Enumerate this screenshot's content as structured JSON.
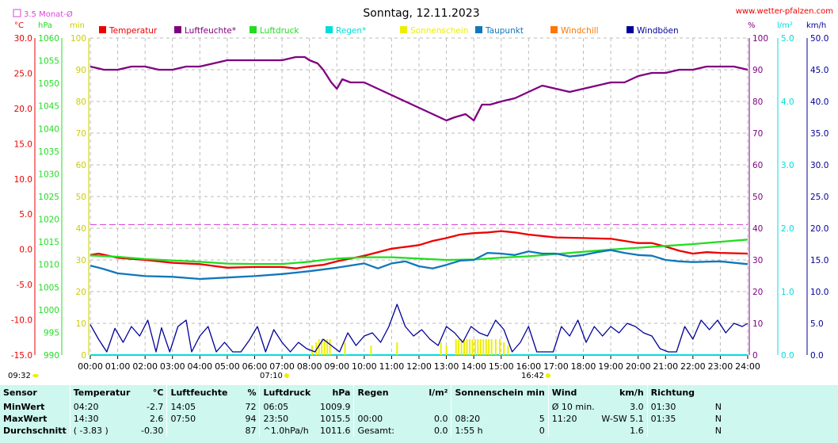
{
  "header": {
    "title": "Sonntag, 12.11.2023",
    "website": "www.wetter-pfalzen.com",
    "avg_marker_label": "3.5 Monat-Ø",
    "units_left": [
      "°C",
      "hPa",
      "min"
    ],
    "units_right": [
      "%",
      "l/m²",
      "km/h"
    ],
    "sunrise": "07:10",
    "sunset": "16:42",
    "time_now": "09:32"
  },
  "colors": {
    "temperature": "#ee0000",
    "humidity": "#800080",
    "pressure": "#22dd22",
    "rain": "#00dddd",
    "sunshine": "#eeee00",
    "dewpoint": "#1177bb",
    "windchill": "#ff7700",
    "gusts": "#000099",
    "avg_line": "#dd44dd",
    "stats_bg": "#cdf7ef"
  },
  "chart_data": {
    "type": "line",
    "title": "Sonntag, 12.11.2023",
    "x_ticks": [
      "00:00",
      "01:00",
      "02:00",
      "03:00",
      "04:00",
      "05:00",
      "06:00",
      "07:00",
      "08:00",
      "09:00",
      "10:00",
      "11:00",
      "12:00",
      "13:00",
      "14:00",
      "15:00",
      "16:00",
      "17:00",
      "18:00",
      "19:00",
      "20:00",
      "21:00",
      "22:00",
      "23:00",
      "24:00"
    ],
    "xlim": [
      0,
      24
    ],
    "grid": true,
    "legend_position": "top",
    "axes": {
      "temperature": {
        "unit": "°C",
        "ylim": [
          -15,
          30
        ],
        "ticks": [
          "-15.0",
          "-10.0",
          "-5.0",
          "0.0",
          "5.0",
          "10.0",
          "15.0",
          "20.0",
          "25.0",
          "30.0"
        ]
      },
      "pressure": {
        "unit": "hPa",
        "ylim": [
          990,
          1060
        ],
        "ticks": [
          "990",
          "995",
          "1000",
          "1005",
          "1010",
          "1015",
          "1020",
          "1025",
          "1030",
          "1035",
          "1040",
          "1045",
          "1050",
          "1055",
          "1060"
        ]
      },
      "minutes": {
        "unit": "min",
        "ylim": [
          0,
          100
        ],
        "ticks": [
          "0",
          "10",
          "20",
          "30",
          "40",
          "50",
          "60",
          "70",
          "80",
          "90",
          "100"
        ]
      },
      "humidity": {
        "unit": "%",
        "ylim": [
          0,
          100
        ],
        "ticks": [
          "0",
          "10",
          "20",
          "30",
          "40",
          "50",
          "60",
          "70",
          "80",
          "90",
          "100"
        ]
      },
      "rain": {
        "unit": "l/m²",
        "ylim": [
          0,
          5
        ],
        "ticks": [
          "0.0",
          "1.0",
          "2.0",
          "3.0",
          "4.0",
          "5.0"
        ]
      },
      "wind": {
        "unit": "km/h",
        "ylim": [
          0,
          50
        ],
        "ticks": [
          "0.0",
          "5.0",
          "10.0",
          "15.0",
          "20.0",
          "25.0",
          "30.0",
          "35.0",
          "40.0",
          "45.0",
          "50.0"
        ]
      }
    },
    "monthly_average_temperature": 3.5,
    "series": [
      {
        "name": "Temperatur",
        "axis": "temperature",
        "x": [
          0,
          0.3,
          1,
          2,
          3,
          4,
          5,
          6,
          7,
          7.5,
          8,
          8.5,
          9,
          10,
          11,
          12,
          12.5,
          13,
          13.5,
          14,
          14.5,
          15,
          15.5,
          16,
          16.5,
          17,
          18,
          19,
          20,
          20.5,
          21,
          21.5,
          22,
          22.5,
          23,
          24
        ],
        "y": [
          -0.8,
          -0.6,
          -1.2,
          -1.5,
          -1.9,
          -2.1,
          -2.6,
          -2.5,
          -2.5,
          -2.7,
          -2.4,
          -2.2,
          -1.7,
          -0.9,
          0.1,
          0.6,
          1.2,
          1.6,
          2.1,
          2.3,
          2.4,
          2.6,
          2.4,
          2.1,
          1.9,
          1.7,
          1.6,
          1.5,
          0.9,
          0.9,
          0.4,
          -0.2,
          -0.6,
          -0.4,
          -0.5,
          -0.6
        ]
      },
      {
        "name": "Luftfeuchte*",
        "axis": "humidity",
        "x": [
          0,
          0.5,
          1,
          1.5,
          2,
          2.5,
          3,
          3.5,
          4,
          4.5,
          5,
          5.5,
          6,
          6.5,
          7,
          7.5,
          7.83,
          8,
          8.3,
          8.5,
          8.8,
          9,
          9.2,
          9.5,
          10,
          10.5,
          11,
          11.5,
          12,
          12.5,
          13,
          13.3,
          13.7,
          14,
          14.3,
          14.6,
          15,
          15.5,
          16,
          16.5,
          17,
          17.5,
          18,
          18.5,
          19,
          19.5,
          20,
          20.5,
          21,
          21.5,
          22,
          22.5,
          23,
          23.5,
          24
        ],
        "y": [
          91,
          90,
          90,
          91,
          91,
          90,
          90,
          91,
          91,
          92,
          93,
          93,
          93,
          93,
          93,
          94,
          94,
          93,
          92,
          90,
          86,
          84,
          87,
          86,
          86,
          84,
          82,
          80,
          78,
          76,
          74,
          75,
          76,
          74,
          79,
          79,
          80,
          81,
          83,
          85,
          84,
          83,
          84,
          85,
          86,
          86,
          88,
          89,
          89,
          90,
          90,
          91,
          91,
          91,
          90
        ]
      },
      {
        "name": "Luftdruck",
        "axis": "pressure",
        "x": [
          0,
          1,
          2,
          3,
          4,
          5,
          6,
          7,
          8,
          8.5,
          9,
          10,
          11,
          12,
          13,
          14,
          14.5,
          15,
          16,
          17,
          18,
          19,
          20,
          21,
          22,
          23,
          24
        ],
        "y": [
          1012.0,
          1011.7,
          1011.2,
          1010.9,
          1010.6,
          1010.2,
          1010.1,
          1010.1,
          1010.6,
          1011.0,
          1011.3,
          1011.6,
          1011.6,
          1011.3,
          1011.0,
          1011.1,
          1011.3,
          1011.5,
          1011.8,
          1012.3,
          1012.8,
          1013.3,
          1013.7,
          1014.1,
          1014.5,
          1015.0,
          1015.5
        ]
      },
      {
        "name": "Regen*",
        "axis": "rain",
        "x": [
          0,
          24
        ],
        "y": [
          0,
          0
        ]
      },
      {
        "name": "Sonnenschein",
        "axis": "minutes",
        "x": [
          8.1,
          8.25,
          8.35,
          8.45,
          8.55,
          8.65,
          8.75,
          9.3,
          10.25,
          11.2,
          12.8,
          13.0,
          13.35,
          13.45,
          13.55,
          13.65,
          13.75,
          13.85,
          13.95,
          14.05,
          14.15,
          14.25,
          14.35,
          14.45,
          14.55,
          14.65,
          14.8,
          14.95,
          15.1,
          15.25
        ],
        "y": [
          3,
          4,
          5,
          5,
          5,
          5,
          5,
          4,
          3,
          4,
          4,
          3,
          5,
          5,
          5,
          5,
          5,
          5,
          5,
          5,
          5,
          5,
          5,
          5,
          5,
          5,
          5,
          5,
          4,
          3
        ]
      },
      {
        "name": "Taupunkt",
        "axis": "temperature",
        "x": [
          0,
          0.5,
          1,
          2,
          3,
          4,
          5,
          6,
          7,
          8,
          9,
          10,
          10.5,
          11,
          11.5,
          12,
          12.5,
          13,
          13.5,
          14,
          14.5,
          15,
          15.5,
          16,
          16.5,
          17,
          17.5,
          18,
          18.5,
          19,
          19.5,
          20,
          20.5,
          21,
          21.5,
          22,
          23,
          24
        ],
        "y": [
          -2.3,
          -2.8,
          -3.4,
          -3.8,
          -3.9,
          -4.2,
          -4.0,
          -3.8,
          -3.5,
          -3.1,
          -2.6,
          -2.0,
          -2.7,
          -2.0,
          -1.7,
          -2.4,
          -2.7,
          -2.2,
          -1.6,
          -1.5,
          -0.5,
          -0.6,
          -0.8,
          -0.3,
          -0.6,
          -0.6,
          -1.0,
          -0.8,
          -0.4,
          -0.1,
          -0.5,
          -0.8,
          -0.9,
          -1.5,
          -1.7,
          -1.8,
          -1.7,
          -2.1
        ]
      },
      {
        "name": "Windchill",
        "axis": "temperature",
        "x": [],
        "y": []
      },
      {
        "name": "Windböen",
        "axis": "wind",
        "x": [
          0,
          0.3,
          0.6,
          0.9,
          1.2,
          1.5,
          1.8,
          2.1,
          2.4,
          2.6,
          2.9,
          3.2,
          3.5,
          3.7,
          4.0,
          4.3,
          4.6,
          4.9,
          5.2,
          5.5,
          5.8,
          6.1,
          6.4,
          6.7,
          7.0,
          7.3,
          7.6,
          7.9,
          8.2,
          8.5,
          8.8,
          9.1,
          9.4,
          9.7,
          10.0,
          10.3,
          10.6,
          10.9,
          11.2,
          11.5,
          11.8,
          12.1,
          12.4,
          12.7,
          13.0,
          13.3,
          13.6,
          13.9,
          14.2,
          14.5,
          14.8,
          15.1,
          15.4,
          15.7,
          16.0,
          16.3,
          16.6,
          16.9,
          17.2,
          17.5,
          17.8,
          18.1,
          18.4,
          18.7,
          19.0,
          19.3,
          19.6,
          19.9,
          20.2,
          20.5,
          20.8,
          21.1,
          21.4,
          21.7,
          22.0,
          22.3,
          22.6,
          22.9,
          23.2,
          23.5,
          23.8,
          24.0
        ],
        "y": [
          4.8,
          2.5,
          0.5,
          4.2,
          2.0,
          4.5,
          3.0,
          5.5,
          0.5,
          4.3,
          0.5,
          4.5,
          5.5,
          0.5,
          3.0,
          4.5,
          0.5,
          2.0,
          0.5,
          0.5,
          2.3,
          4.5,
          0.5,
          4.0,
          2.0,
          0.5,
          2.0,
          1.0,
          0.5,
          2.5,
          1.5,
          0.5,
          3.5,
          1.5,
          3.0,
          3.5,
          2.0,
          4.5,
          8.0,
          4.5,
          3.0,
          4.0,
          2.5,
          1.5,
          4.5,
          3.5,
          2.0,
          4.5,
          3.5,
          3.0,
          5.5,
          4.0,
          0.5,
          2.0,
          4.5,
          0.5,
          0.5,
          0.5,
          4.5,
          3.0,
          5.5,
          2.0,
          4.5,
          3.0,
          4.5,
          3.5,
          5.0,
          4.5,
          3.5,
          3.0,
          1.0,
          0.5,
          0.5,
          4.5,
          2.5,
          5.5,
          4.0,
          5.5,
          3.5,
          5.0,
          4.5,
          5.0
        ]
      }
    ]
  },
  "stats": {
    "headers": [
      "Sensor",
      "Temperatur",
      "°C",
      "Luftfeuchte",
      "%",
      "Luftdruck",
      "hPa",
      "Regen",
      "l/m²",
      "Sonnenschein min",
      "Wind",
      "km/h",
      "Richtung"
    ],
    "rows": [
      {
        "label": "MinWert",
        "cells": [
          "04:20",
          "-2.7",
          "14:05",
          "72",
          "06:05",
          "1009.9",
          "",
          "",
          "",
          "",
          "Ø 10 min.",
          "3.0",
          "01:30",
          "N"
        ]
      },
      {
        "label": "MaxWert",
        "cells": [
          "14:30",
          "2.6",
          "07:50",
          "94",
          "23:50",
          "1015.5",
          "00:00",
          "0.0",
          "08:20",
          "5",
          "11:20",
          "W-SW 5.1",
          "01:35",
          "N"
        ]
      },
      {
        "label": "Durchschnitt",
        "cells": [
          "( -3.83 )",
          "-0.30",
          "",
          "87",
          "^1.0hPa/h",
          "1011.6",
          "Gesamt:",
          "0.0",
          "1:55 h",
          "0",
          "",
          "1.6",
          "",
          "N"
        ]
      }
    ]
  }
}
